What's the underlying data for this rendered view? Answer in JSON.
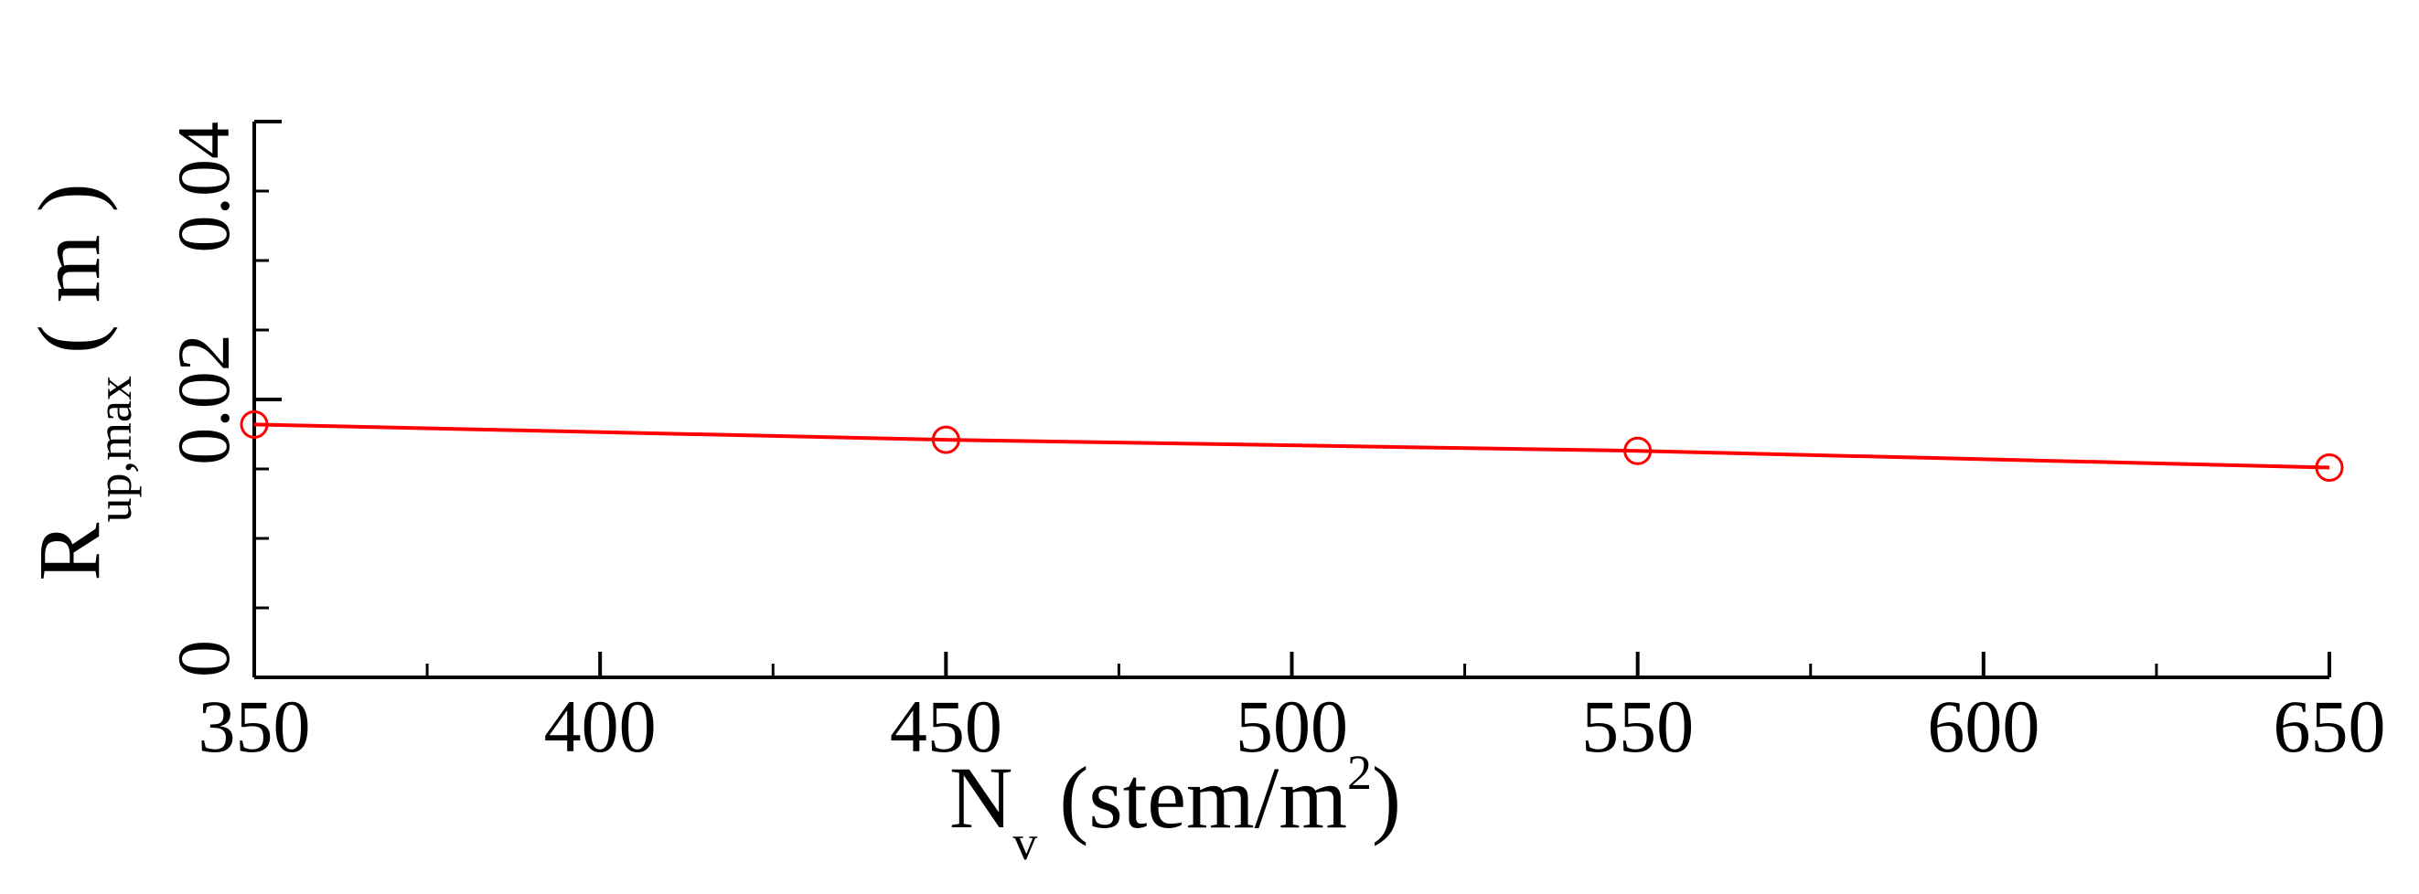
{
  "chart_data": {
    "type": "line",
    "x": [
      350,
      450,
      550,
      650
    ],
    "series": [
      {
        "values": [
          0.0182,
          0.0171,
          0.0163,
          0.0151
        ],
        "color": "#ff0000",
        "marker": "circle"
      }
    ],
    "xlim": [
      350,
      650
    ],
    "ylim": [
      0,
      0.04
    ],
    "x_ticks": [
      "350",
      "400",
      "450",
      "500",
      "550",
      "600",
      "650"
    ],
    "y_ticks": [
      "0",
      "0.02",
      "0.04"
    ],
    "x_minor_step": 25,
    "y_minor_step": 0.005,
    "xlabel": {
      "main": "N",
      "sub": "v",
      "rest": " (stem/m",
      "sup": "2",
      "end": ")"
    },
    "ylabel": {
      "main": "R",
      "sub": "up,max",
      "rest": " ( m )"
    },
    "grid": false
  }
}
